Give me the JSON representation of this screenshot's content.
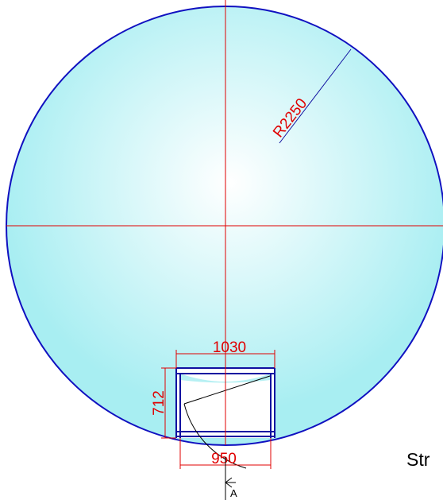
{
  "radius_label": "R2250",
  "dimensions": {
    "top": "1030",
    "side": "712",
    "bottom": "950"
  },
  "section_label": "A",
  "caption": "Str"
}
